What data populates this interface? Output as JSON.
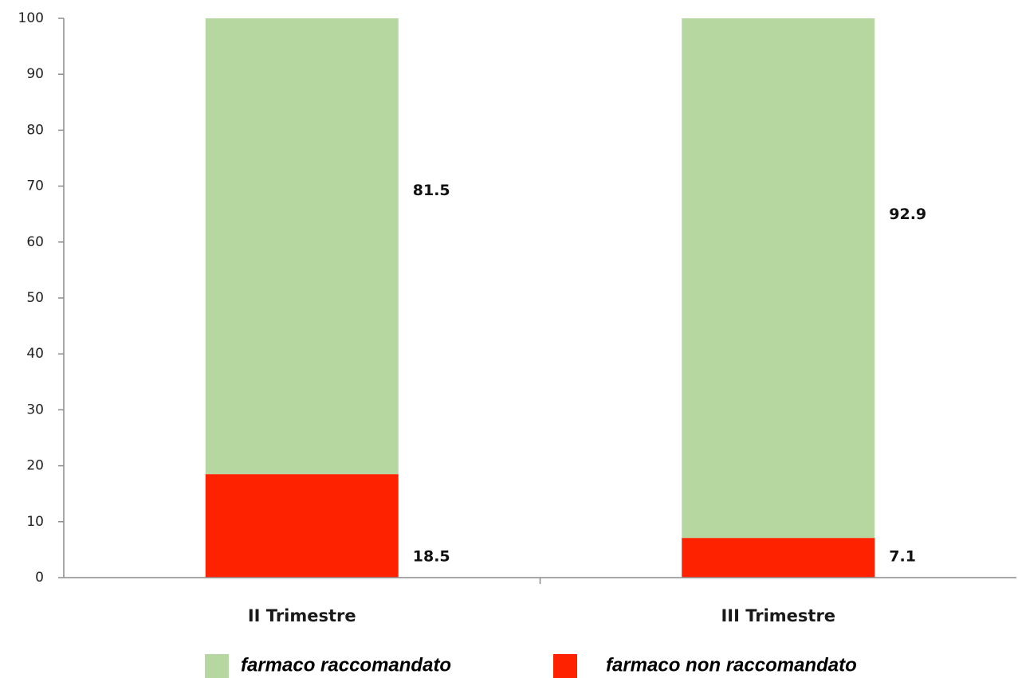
{
  "chart_data": {
    "type": "bar",
    "stacked": true,
    "categories": [
      "II Trimestre",
      "III Trimestre"
    ],
    "series": [
      {
        "name": "farmaco non raccomandato",
        "values": [
          18.5,
          7.1
        ],
        "color": "#ff2200"
      },
      {
        "name": "farmaco raccomandato",
        "values": [
          81.5,
          92.9
        ],
        "color": "#b7d7a0"
      }
    ],
    "y_ticks": [
      0,
      10,
      20,
      30,
      40,
      50,
      60,
      70,
      80,
      90,
      100
    ],
    "ylim": [
      0,
      100
    ],
    "title": "",
    "xlabel": "",
    "ylabel": "",
    "grid": false,
    "legend": {
      "position": "bottom",
      "entries": [
        "farmaco raccomandato",
        "farmaco non raccomandato"
      ]
    }
  }
}
